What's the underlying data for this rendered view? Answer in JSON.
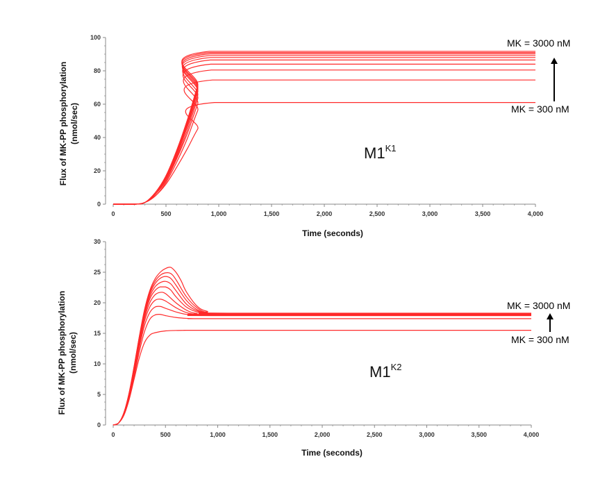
{
  "chart_data": [
    {
      "type": "line",
      "title": "",
      "xlabel": "Time (seconds)",
      "ylabel_line1": "Flux of MK-PP phosphorylation",
      "ylabel_line2": "(nmol/sec)",
      "xlim": [
        0,
        4000
      ],
      "ylim": [
        0,
        100
      ],
      "xticks": [
        0,
        500,
        1000,
        1500,
        2000,
        2500,
        3000,
        3500,
        4000
      ],
      "xtick_labels": [
        "0",
        "500",
        "1,000",
        "1,500",
        "2,000",
        "2,500",
        "3,000",
        "3,500",
        "4,000"
      ],
      "yticks": [
        0,
        20,
        40,
        60,
        80,
        100
      ],
      "ytick_labels": [
        "0",
        "20",
        "40",
        "60",
        "80",
        "100"
      ],
      "model_label": "M1",
      "model_sup": "K1",
      "annotation_top": "MK = 3000 nM",
      "annotation_bottom": "MK = 300 nM",
      "line_color": "#ff2a2a",
      "series": [
        {
          "x": [
            0,
            200,
            300,
            400,
            500,
            600,
            700,
            800,
            960,
            4000
          ],
          "y": [
            0,
            0,
            1,
            5,
            12,
            22,
            33,
            45,
            61,
            61
          ]
        },
        {
          "x": [
            0,
            200,
            300,
            400,
            500,
            600,
            700,
            800,
            940,
            4000
          ],
          "y": [
            0,
            0,
            1,
            5,
            13,
            25,
            39,
            56,
            74.5,
            74.5
          ]
        },
        {
          "x": [
            0,
            200,
            300,
            400,
            500,
            600,
            700,
            800,
            930,
            4000
          ],
          "y": [
            0,
            0,
            1,
            6,
            14,
            27,
            42,
            60,
            80.5,
            80.5
          ]
        },
        {
          "x": [
            0,
            200,
            300,
            400,
            500,
            600,
            700,
            800,
            925,
            4000
          ],
          "y": [
            0,
            0,
            1,
            6,
            15,
            28,
            44,
            63,
            84,
            84
          ]
        },
        {
          "x": [
            0,
            200,
            300,
            400,
            500,
            600,
            700,
            800,
            920,
            4000
          ],
          "y": [
            0,
            0,
            1,
            6,
            15,
            29,
            46,
            65,
            86.5,
            86.5
          ]
        },
        {
          "x": [
            0,
            200,
            300,
            400,
            500,
            600,
            700,
            800,
            920,
            4000
          ],
          "y": [
            0,
            0,
            1,
            6,
            16,
            30,
            47,
            67,
            88,
            88
          ]
        },
        {
          "x": [
            0,
            200,
            300,
            400,
            500,
            600,
            700,
            800,
            915,
            4000
          ],
          "y": [
            0,
            0,
            1,
            6,
            16,
            31,
            48,
            68,
            89.2,
            89.2
          ]
        },
        {
          "x": [
            0,
            200,
            300,
            400,
            500,
            600,
            700,
            800,
            915,
            4000
          ],
          "y": [
            0,
            0,
            1,
            7,
            16,
            31,
            49,
            69,
            90.2,
            90.2
          ]
        },
        {
          "x": [
            0,
            200,
            300,
            400,
            500,
            600,
            700,
            800,
            910,
            4000
          ],
          "y": [
            0,
            0,
            1,
            7,
            17,
            32,
            50,
            70,
            91,
            91
          ]
        },
        {
          "x": [
            0,
            200,
            300,
            400,
            500,
            600,
            700,
            800,
            910,
            4000
          ],
          "y": [
            0,
            0,
            1,
            7,
            17,
            32,
            50,
            71,
            91.7,
            91.7
          ]
        }
      ]
    },
    {
      "type": "line",
      "title": "",
      "xlabel": "Time (seconds)",
      "ylabel_line1": "Flux of MK-PP phosphorylation",
      "ylabel_line2": "(nmol/sec)",
      "xlim": [
        0,
        4000
      ],
      "ylim": [
        0,
        30
      ],
      "xticks": [
        0,
        500,
        1000,
        1500,
        2000,
        2500,
        3000,
        3500,
        4000
      ],
      "xtick_labels": [
        "0",
        "500",
        "1,000",
        "1,500",
        "2,000",
        "2,500",
        "3,000",
        "3,500",
        "4,000"
      ],
      "yticks": [
        0,
        5,
        10,
        15,
        20,
        25,
        30
      ],
      "ytick_labels": [
        "0",
        "5",
        "10",
        "15",
        "20",
        "25",
        "30"
      ],
      "model_label": "M1",
      "model_sup": "K2",
      "annotation_top": "MK = 3000 nM",
      "annotation_bottom": "MK = 300 nM",
      "line_color": "#ff2a2a",
      "series": [
        {
          "x": [
            0,
            50,
            100,
            150,
            200,
            250,
            300,
            350,
            400,
            500,
            700,
            1000,
            4000
          ],
          "y": [
            0,
            0.3,
            1.5,
            4,
            7.5,
            11,
            13.5,
            14.7,
            15.1,
            15.4,
            15.5,
            15.5,
            15.5
          ]
        },
        {
          "x": [
            0,
            50,
            100,
            150,
            200,
            250,
            300,
            350,
            400,
            450,
            500,
            600,
            700,
            800,
            1000,
            4000
          ],
          "y": [
            0,
            0.3,
            1.6,
            4.3,
            8,
            12,
            15.3,
            17.3,
            18.0,
            18.1,
            17.9,
            17.6,
            17.45,
            17.4,
            17.4,
            17.4
          ]
        },
        {
          "x": [
            0,
            50,
            100,
            150,
            200,
            250,
            300,
            350,
            400,
            450,
            500,
            600,
            700,
            800,
            1000,
            4000
          ],
          "y": [
            0,
            0.3,
            1.7,
            4.5,
            8.4,
            12.7,
            16.3,
            18.4,
            19.3,
            19.4,
            19.1,
            18.5,
            18.1,
            17.95,
            17.9,
            17.9
          ]
        },
        {
          "x": [
            0,
            50,
            100,
            150,
            200,
            250,
            300,
            350,
            400,
            450,
            500,
            600,
            700,
            800,
            1000,
            4000
          ],
          "y": [
            0,
            0.3,
            1.7,
            4.6,
            8.7,
            13.1,
            17,
            19.3,
            20.4,
            20.6,
            20.3,
            19.2,
            18.4,
            18.1,
            18.0,
            18.0
          ]
        },
        {
          "x": [
            0,
            50,
            100,
            150,
            200,
            250,
            300,
            350,
            400,
            450,
            500,
            600,
            700,
            800,
            1000,
            4000
          ],
          "y": [
            0,
            0.3,
            1.8,
            4.7,
            8.9,
            13.5,
            17.5,
            20.0,
            21.3,
            21.7,
            21.5,
            20.0,
            18.8,
            18.25,
            18.1,
            18.1
          ]
        },
        {
          "x": [
            0,
            50,
            100,
            150,
            200,
            250,
            300,
            350,
            400,
            450,
            500,
            550,
            600,
            700,
            800,
            900,
            1100,
            4000
          ],
          "y": [
            0,
            0.3,
            1.8,
            4.8,
            9.1,
            13.8,
            17.9,
            20.6,
            22.0,
            22.6,
            22.6,
            22.1,
            21.0,
            19.3,
            18.5,
            18.2,
            18.15,
            18.15
          ]
        },
        {
          "x": [
            0,
            50,
            100,
            150,
            200,
            250,
            300,
            350,
            400,
            450,
            500,
            550,
            600,
            700,
            800,
            900,
            1100,
            4000
          ],
          "y": [
            0,
            0.3,
            1.8,
            4.9,
            9.2,
            14.0,
            18.2,
            21.0,
            22.6,
            23.3,
            23.5,
            23.1,
            22.0,
            19.8,
            18.7,
            18.3,
            18.2,
            18.2
          ]
        },
        {
          "x": [
            0,
            50,
            100,
            150,
            200,
            250,
            300,
            350,
            400,
            450,
            500,
            550,
            600,
            700,
            800,
            900,
            1100,
            4000
          ],
          "y": [
            0,
            0.3,
            1.9,
            5.0,
            9.4,
            14.2,
            18.5,
            21.4,
            23.1,
            24.0,
            24.3,
            24.0,
            22.9,
            20.4,
            18.9,
            18.35,
            18.25,
            18.25
          ]
        },
        {
          "x": [
            0,
            50,
            100,
            150,
            200,
            250,
            300,
            350,
            400,
            450,
            500,
            550,
            600,
            700,
            800,
            900,
            1100,
            4000
          ],
          "y": [
            0,
            0.3,
            1.9,
            5.0,
            9.5,
            14.4,
            18.7,
            21.7,
            23.5,
            24.5,
            24.9,
            24.8,
            23.8,
            21.0,
            19.2,
            18.4,
            18.25,
            18.25
          ]
        },
        {
          "x": [
            0,
            50,
            100,
            150,
            200,
            250,
            300,
            350,
            400,
            450,
            500,
            550,
            600,
            650,
            700,
            800,
            900,
            1100,
            4000
          ],
          "y": [
            0,
            0.3,
            1.9,
            5.1,
            9.6,
            14.5,
            18.9,
            22.0,
            23.9,
            25.0,
            25.6,
            25.8,
            25.0,
            23.6,
            21.8,
            19.5,
            18.6,
            18.3,
            18.3
          ]
        }
      ]
    }
  ]
}
